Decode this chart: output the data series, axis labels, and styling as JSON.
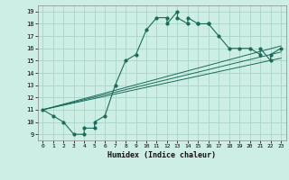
{
  "title": "",
  "xlabel": "Humidex (Indice chaleur)",
  "bg_color": "#cceee4",
  "grid_color": "#aad4c8",
  "line_color": "#1a6b5a",
  "xlim": [
    -0.5,
    23.5
  ],
  "ylim": [
    8.5,
    19.5
  ],
  "xticks": [
    0,
    1,
    2,
    3,
    4,
    5,
    6,
    7,
    8,
    9,
    10,
    11,
    12,
    13,
    14,
    15,
    16,
    17,
    18,
    19,
    20,
    21,
    22,
    23
  ],
  "yticks": [
    9,
    10,
    11,
    12,
    13,
    14,
    15,
    16,
    17,
    18,
    19
  ],
  "main_series_x": [
    0,
    1,
    2,
    3,
    4,
    4,
    5,
    5,
    6,
    7,
    8,
    9,
    10,
    11,
    12,
    12,
    13,
    13,
    14,
    14,
    15,
    15,
    16,
    16,
    17,
    18,
    19,
    20,
    21,
    21,
    22,
    22,
    23
  ],
  "main_series_y": [
    11,
    10.5,
    10,
    9,
    9,
    9.5,
    9.5,
    10,
    10.5,
    13,
    15,
    15.5,
    17.5,
    18.5,
    18.5,
    18,
    19,
    18.5,
    18,
    18.5,
    18,
    18,
    18,
    18,
    17,
    16,
    16,
    16,
    15.5,
    16,
    15,
    15.5,
    16
  ],
  "line1_x": [
    0,
    23
  ],
  "line1_y": [
    11,
    16.2
  ],
  "line2_x": [
    0,
    23
  ],
  "line2_y": [
    11,
    15.7
  ],
  "line3_x": [
    0,
    23
  ],
  "line3_y": [
    11,
    15.2
  ]
}
